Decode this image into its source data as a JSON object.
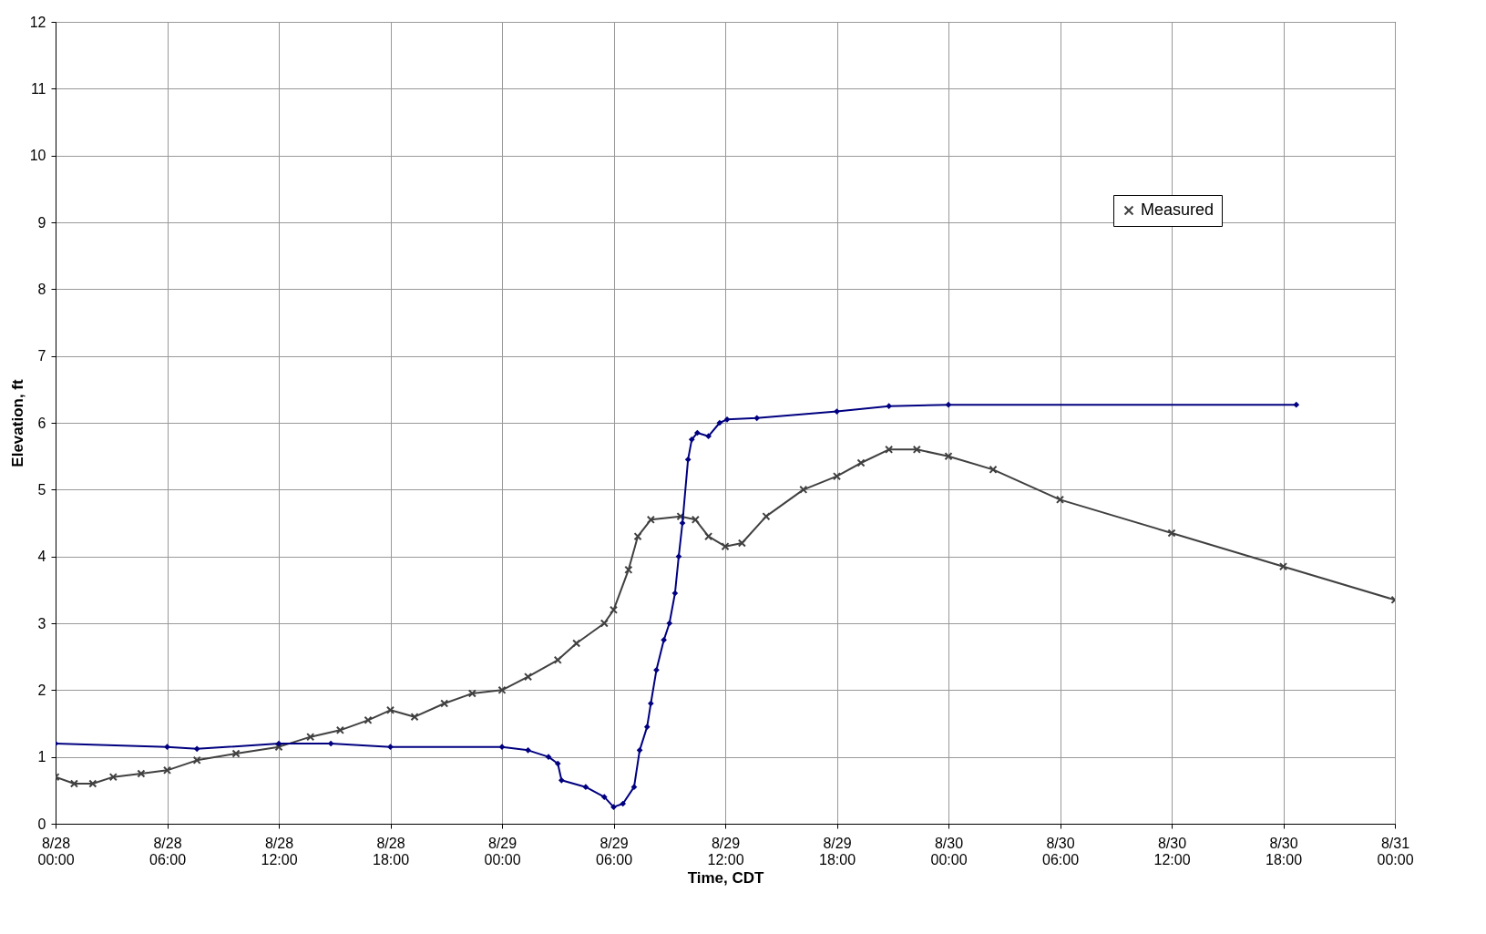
{
  "chart_data": {
    "type": "line",
    "xlabel": "Time, CDT",
    "ylabel": "Elevation, ft",
    "xlim": [
      "--08-28T00:00",
      "--08-31T00:00"
    ],
    "xticks": [
      {
        "value": "--08-28T00:00",
        "label": "8/28 00:00"
      },
      {
        "value": "--08-28T06:00",
        "label": "8/28 06:00"
      },
      {
        "value": "--08-28T12:00",
        "label": "8/28 12:00"
      },
      {
        "value": "--08-28T18:00",
        "label": "8/28 18:00"
      },
      {
        "value": "--08-29T00:00",
        "label": "8/29 00:00"
      },
      {
        "value": "--08-29T06:00",
        "label": "8/29 06:00"
      },
      {
        "value": "--08-29T12:00",
        "label": "8/29 12:00"
      },
      {
        "value": "--08-29T18:00",
        "label": "8/29 18:00"
      },
      {
        "value": "--08-30T00:00",
        "label": "8/30 00:00"
      },
      {
        "value": "--08-30T06:00",
        "label": "8/30 06:00"
      },
      {
        "value": "--08-30T12:00",
        "label": "8/30 12:00"
      },
      {
        "value": "--08-30T18:00",
        "label": "8/30 18:00"
      },
      {
        "value": "--08-31T00:00",
        "label": "8/31 00:00"
      }
    ],
    "ylim": [
      0,
      12
    ],
    "yticks": [
      0,
      1,
      2,
      3,
      4,
      5,
      6,
      7,
      8,
      9,
      10,
      11,
      12
    ],
    "grid": true,
    "legend": "top right",
    "series": [
      {
        "name": "Measured",
        "color": "#404040",
        "marker": "cross",
        "x": [
          "--08-28T00:00",
          "--08-28T01:00",
          "--08-28T02:00",
          "--08-28T03:06",
          "--08-28T04:36",
          "--08-28T06:00",
          "--08-28T07:36",
          "--08-28T09:42",
          "--08-28T12:00",
          "--08-28T13:42",
          "--08-28T15:18",
          "--08-28T16:48",
          "--08-28T18:00",
          "--08-28T19:18",
          "--08-28T20:54",
          "--08-28T22:24",
          "--08-29T00:00",
          "--08-29T01:24",
          "--08-29T03:00",
          "--08-29T04:00",
          "--08-29T05:30",
          "--08-29T06:00",
          "--08-29T06:48",
          "--08-29T07:18",
          "--08-29T08:00",
          "--08-29T09:36",
          "--08-29T10:24",
          "--08-29T11:06",
          "--08-29T12:00",
          "--08-29T12:54",
          "--08-29T14:12",
          "--08-29T16:12",
          "--08-29T18:00",
          "--08-29T19:18",
          "--08-29T20:48",
          "--08-29T22:18",
          "--08-30T00:00",
          "--08-30T02:24",
          "--08-30T06:00",
          "--08-30T12:00",
          "--08-30T18:00",
          "--08-31T00:00"
        ],
        "values": [
          0.7,
          0.6,
          0.6,
          0.7,
          0.75,
          0.8,
          0.95,
          1.05,
          1.15,
          1.3,
          1.4,
          1.55,
          1.7,
          1.6,
          1.8,
          1.95,
          2.0,
          2.2,
          2.45,
          2.7,
          3.0,
          3.2,
          3.8,
          4.3,
          4.55,
          4.6,
          4.55,
          4.3,
          4.15,
          4.2,
          4.6,
          5.0,
          5.2,
          5.4,
          5.6,
          5.6,
          5.5,
          5.3,
          4.85,
          4.35,
          3.85,
          3.35
        ]
      },
      {
        "color": "#000080",
        "marker": "diamond",
        "x": [
          "--08-28T00:00",
          "--08-28T06:00",
          "--08-28T07:36",
          "--08-28T12:00",
          "--08-28T14:48",
          "--08-28T18:00",
          "--08-29T00:00",
          "--08-29T01:24",
          "--08-29T02:30",
          "--08-29T03:00",
          "--08-29T03:12",
          "--08-29T04:30",
          "--08-29T05:30",
          "--08-29T06:00",
          "--08-29T06:30",
          "--08-29T07:06",
          "--08-29T07:24",
          "--08-29T07:48",
          "--08-29T08:00",
          "--08-29T08:18",
          "--08-29T08:42",
          "--08-29T09:00",
          "--08-29T09:18",
          "--08-29T09:30",
          "--08-29T09:42",
          "--08-29T10:00",
          "--08-29T10:12",
          "--08-29T10:30",
          "--08-29T11:06",
          "--08-29T11:42",
          "--08-29T12:06",
          "--08-29T13:42",
          "--08-29T18:00",
          "--08-29T20:48",
          "--08-30T00:00",
          "--08-30T18:42"
        ],
        "values": [
          1.2,
          1.15,
          1.12,
          1.2,
          1.2,
          1.15,
          1.15,
          1.1,
          1.0,
          0.9,
          0.65,
          0.55,
          0.4,
          0.25,
          0.3,
          0.55,
          1.1,
          1.45,
          1.8,
          2.3,
          2.75,
          3.0,
          3.45,
          4.0,
          4.5,
          5.45,
          5.75,
          5.85,
          5.8,
          6.0,
          6.05,
          6.07,
          6.17,
          6.25,
          6.27,
          6.27
        ]
      }
    ]
  }
}
